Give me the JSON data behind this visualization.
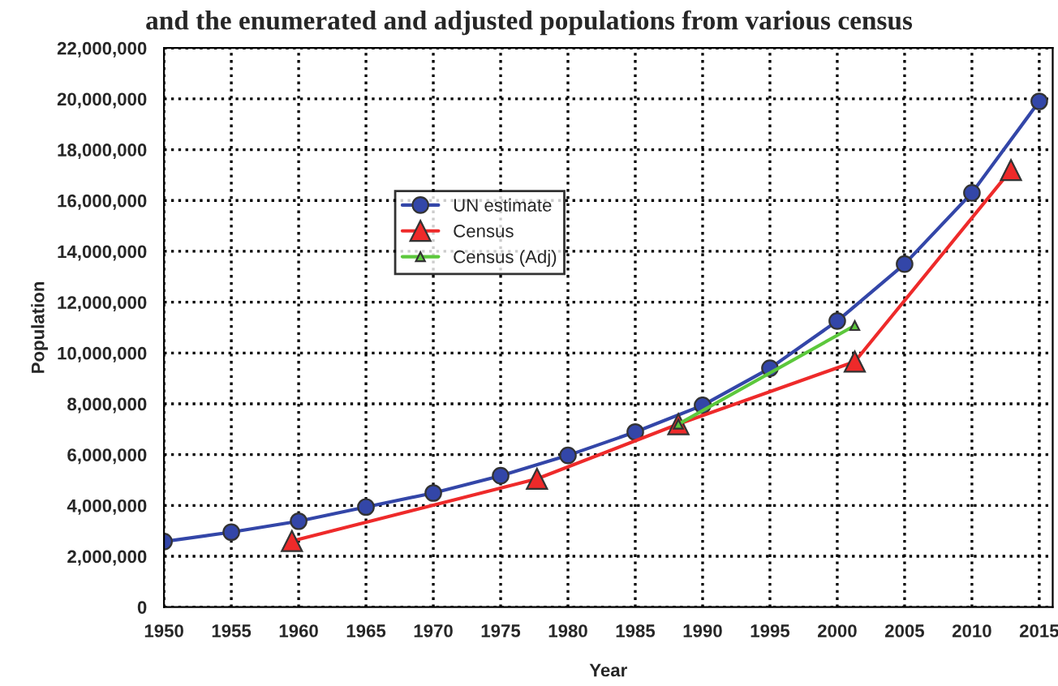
{
  "chart_data": {
    "type": "line",
    "title": "and the enumerated and adjusted populations from various census",
    "xlabel": "Year",
    "ylabel": "Population",
    "xlim": [
      1950,
      2016
    ],
    "xticks": [
      1950,
      1955,
      1960,
      1965,
      1970,
      1975,
      1980,
      1985,
      1990,
      1995,
      2000,
      2005,
      2010,
      2015
    ],
    "ylim": [
      0,
      22000000
    ],
    "yticks": [
      {
        "value": 0,
        "label": "0"
      },
      {
        "value": 2000000,
        "label": "2,000,000"
      },
      {
        "value": 4000000,
        "label": "4,000,000"
      },
      {
        "value": 6000000,
        "label": "6,000,000"
      },
      {
        "value": 8000000,
        "label": "8,000,000"
      },
      {
        "value": 10000000,
        "label": "10,000,000"
      },
      {
        "value": 12000000,
        "label": "12,000,000"
      },
      {
        "value": 14000000,
        "label": "14,000,000"
      },
      {
        "value": 16000000,
        "label": "16,000,000"
      },
      {
        "value": 18000000,
        "label": "18,000,000"
      },
      {
        "value": 20000000,
        "label": "20,000,000"
      },
      {
        "value": 22000000,
        "label": "22,000,000"
      }
    ],
    "grid": true,
    "legend": "center left",
    "line_style": "solid",
    "series": [
      {
        "name": "UN estimate",
        "color": "#3346a8",
        "marker": "circle",
        "x": [
          1950,
          1955,
          1960,
          1965,
          1970,
          1975,
          1980,
          1985,
          1990,
          1995,
          2000,
          2005,
          2010,
          2015
        ],
        "values": [
          2580000,
          2950000,
          3380000,
          3940000,
          4490000,
          5170000,
          5970000,
          6890000,
          7940000,
          9400000,
          11260000,
          13500000,
          16300000,
          19900000
        ]
      },
      {
        "name": "Census",
        "color": "#ee2a2a",
        "marker": "triangle",
        "x": [
          1959.5,
          1977.7,
          1988.2,
          2001.3,
          2012.9
        ],
        "values": [
          2600000,
          5050000,
          7200000,
          9660000,
          17200000
        ]
      },
      {
        "name": "Census (Adj)",
        "color": "#5cc83c",
        "marker": "triangle",
        "x": [
          1988.2,
          2001.3
        ],
        "values": [
          7200000,
          11080000
        ]
      }
    ]
  }
}
